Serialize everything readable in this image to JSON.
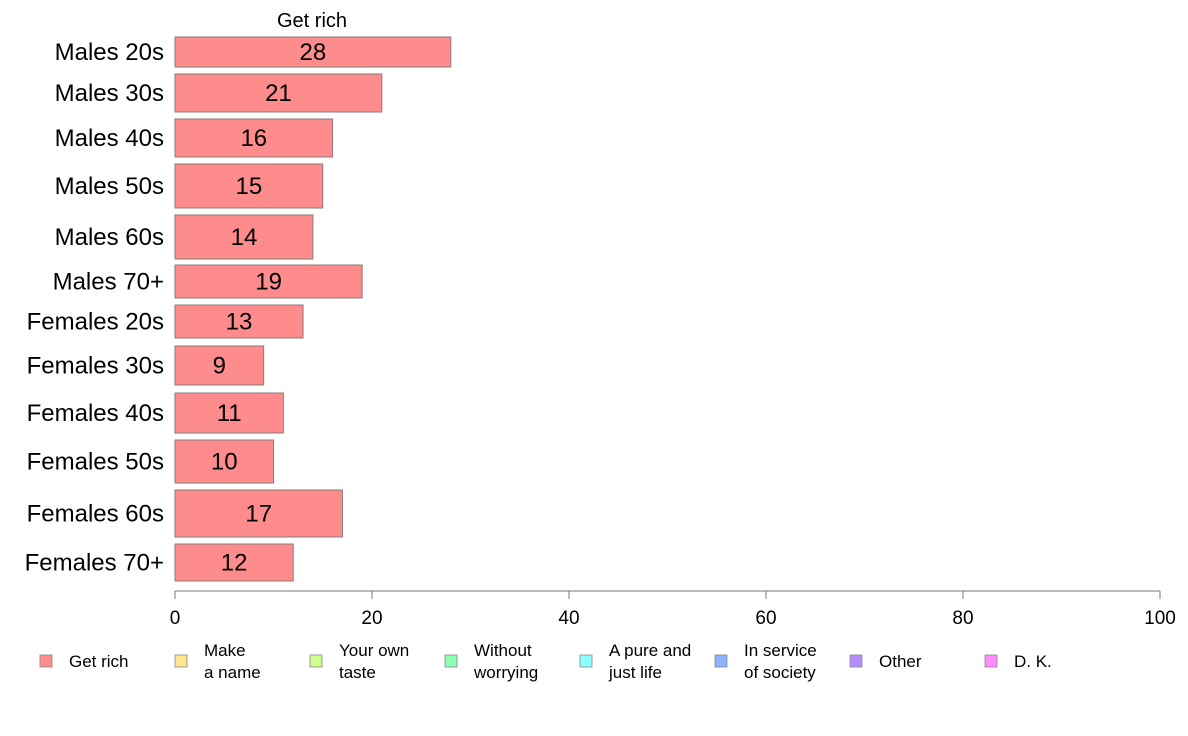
{
  "chart_data": {
    "type": "bar",
    "orientation": "horizontal",
    "title": "Get rich",
    "categories": [
      "Males 20s",
      "Males 30s",
      "Males 40s",
      "Males 50s",
      "Males 60s",
      "Males 70+",
      "Females 20s",
      "Females 30s",
      "Females 40s",
      "Females 50s",
      "Females 60s",
      "Females 70+"
    ],
    "series": [
      {
        "name": "Get rich",
        "color": "#ff8c8c",
        "values": [
          28,
          21,
          16,
          15,
          14,
          19,
          13,
          9,
          11,
          10,
          17,
          12
        ]
      }
    ],
    "xlim": [
      0,
      100
    ],
    "xticks": [
      "0",
      "20",
      "40",
      "60",
      "80",
      "100"
    ],
    "grid": false,
    "legend": {
      "placement": "bottom",
      "entries": [
        {
          "label": [
            "Get rich"
          ],
          "color": "#ff8c8c"
        },
        {
          "label": [
            "Make",
            "a name"
          ],
          "color": "#ffe68c"
        },
        {
          "label": [
            "Your own",
            "taste"
          ],
          "color": "#ccff8c"
        },
        {
          "label": [
            "Without",
            "worrying"
          ],
          "color": "#8cffb3"
        },
        {
          "label": [
            "A pure and",
            "just life"
          ],
          "color": "#8cffff"
        },
        {
          "label": [
            "In service",
            "of society"
          ],
          "color": "#8cb3ff"
        },
        {
          "label": [
            "Other"
          ],
          "color": "#b38cff"
        },
        {
          "label": [
            "D. K."
          ],
          "color": "#ff8cff"
        }
      ]
    }
  }
}
